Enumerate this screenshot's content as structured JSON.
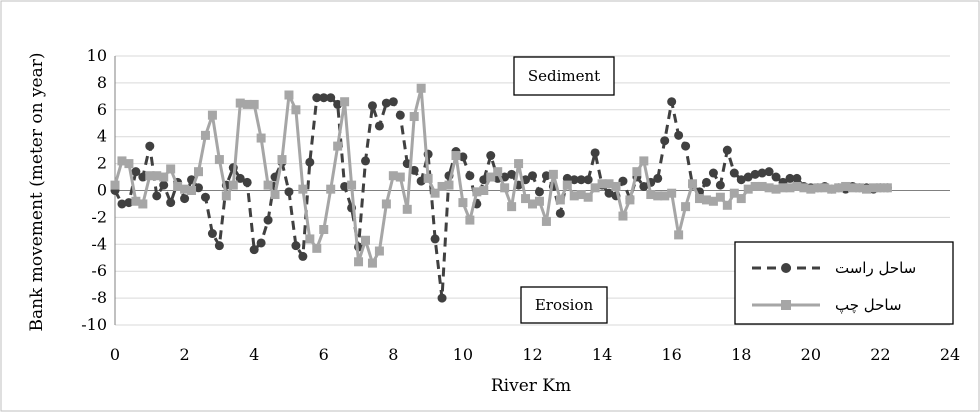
{
  "chart_data": {
    "type": "line",
    "xlabel": "River Km",
    "ylabel": "Bank movement (meter on year)",
    "xlim": [
      0,
      24
    ],
    "ylim": [
      -10,
      10
    ],
    "xticks": [
      "0",
      "2",
      "4",
      "6",
      "8",
      "10",
      "12",
      "14",
      "16",
      "18",
      "20",
      "22",
      "24"
    ],
    "yticks": [
      "10",
      "8",
      "6",
      "4",
      "2",
      "0",
      "-2",
      "-4",
      "-6",
      "-8",
      "-10"
    ],
    "grid": true,
    "legend_position": "bottom-right",
    "annotations": {
      "sediment": "Sediment",
      "erosion": "Erosion"
    },
    "series": [
      {
        "name": "ساحل راست",
        "color": "#404040",
        "marker": "circle",
        "line": "dashed",
        "x": [
          0,
          0.2,
          0.4,
          0.6,
          0.8,
          1.0,
          1.2,
          1.4,
          1.6,
          1.8,
          2.0,
          2.2,
          2.4,
          2.6,
          2.8,
          3.0,
          3.2,
          3.4,
          3.6,
          3.8,
          4.0,
          4.2,
          4.4,
          4.6,
          4.8,
          5.0,
          5.2,
          5.4,
          5.6,
          5.8,
          6.0,
          6.2,
          6.4,
          6.6,
          6.8,
          7.0,
          7.2,
          7.4,
          7.6,
          7.8,
          8.0,
          8.2,
          8.4,
          8.6,
          8.8,
          9.0,
          9.2,
          9.4,
          9.6,
          9.8,
          10.0,
          10.2,
          10.4,
          10.6,
          10.8,
          11.0,
          11.2,
          11.4,
          11.6,
          11.8,
          12.0,
          12.2,
          12.4,
          12.6,
          12.8,
          13.0,
          13.2,
          13.4,
          13.6,
          13.8,
          14.0,
          14.2,
          14.4,
          14.6,
          14.8,
          15.0,
          15.2,
          15.4,
          15.6,
          15.8,
          16.0,
          16.2,
          16.4,
          16.6,
          16.8,
          17.0,
          17.2,
          17.4,
          17.6,
          17.8,
          18.0,
          18.2,
          18.4,
          18.6,
          18.8,
          19.0,
          19.2,
          19.4,
          19.6,
          19.8,
          20.0,
          20.2,
          20.4,
          20.6,
          20.8,
          21.0,
          21.2,
          21.4,
          21.6,
          21.8,
          22.0,
          22.2
        ],
        "y": [
          0,
          -1,
          -0.9,
          1.4,
          1.0,
          3.3,
          -0.4,
          0.4,
          -0.9,
          0.6,
          -0.6,
          0.8,
          0.2,
          -0.5,
          -3.2,
          -4.1,
          0.4,
          1.7,
          0.9,
          0.6,
          -4.4,
          -3.9,
          -2.2,
          1.0,
          2.1,
          -0.1,
          -4.1,
          -4.9,
          2.1,
          6.9,
          6.9,
          6.9,
          6.4,
          0.3,
          -1.3,
          -4.2,
          2.2,
          6.3,
          4.8,
          6.5,
          6.6,
          5.6,
          2.0,
          1.5,
          0.7,
          2.7,
          -3.6,
          -8.0,
          1.1,
          2.9,
          2.5,
          1.1,
          -1.0,
          0.8,
          2.6,
          0.9,
          1.0,
          1.2,
          0.4,
          0.8,
          1.1,
          -0.1,
          1.1,
          0.3,
          -1.7,
          0.9,
          0.8,
          0.8,
          0.8,
          2.8,
          0.4,
          -0.2,
          -0.4,
          0.7,
          -0.6,
          1.0,
          0.3,
          0.6,
          0.9,
          3.7,
          6.6,
          4.1,
          3.3,
          0.4,
          -0.1,
          0.6,
          1.3,
          0.4,
          3.0,
          1.3,
          0.8,
          1.0,
          1.2,
          1.3,
          1.4,
          1.0,
          0.6,
          0.9,
          0.9,
          0.3,
          0.2,
          0.2,
          0.3,
          0.1,
          0.2,
          0.1,
          0.3,
          0.2,
          0.2,
          0.1,
          0.2,
          0.2
        ],
        "x_display_note": ""
      },
      {
        "name": "ساحل چپ",
        "color": "#a6a6a6",
        "marker": "square",
        "line": "solid",
        "x": [
          0,
          0.2,
          0.4,
          0.6,
          0.8,
          1.0,
          1.2,
          1.4,
          1.6,
          1.8,
          2.0,
          2.2,
          2.4,
          2.6,
          2.8,
          3.0,
          3.2,
          3.4,
          3.6,
          3.8,
          4.0,
          4.2,
          4.4,
          4.6,
          4.8,
          5.0,
          5.2,
          5.4,
          5.6,
          5.8,
          6.0,
          6.2,
          6.4,
          6.6,
          6.8,
          7.0,
          7.2,
          7.4,
          7.6,
          7.8,
          8.0,
          8.2,
          8.4,
          8.6,
          8.8,
          9.0,
          9.2,
          9.4,
          9.6,
          9.8,
          10.0,
          10.2,
          10.4,
          10.6,
          10.8,
          11.0,
          11.2,
          11.4,
          11.6,
          11.8,
          12.0,
          12.2,
          12.4,
          12.6,
          12.8,
          13.0,
          13.2,
          13.4,
          13.6,
          13.8,
          14.0,
          14.2,
          14.4,
          14.6,
          14.8,
          15.0,
          15.2,
          15.4,
          15.6,
          15.8,
          16.0,
          16.2,
          16.4,
          16.6,
          16.8,
          17.0,
          17.2,
          17.4,
          17.6,
          17.8,
          18.0,
          18.2,
          18.4,
          18.6,
          18.8,
          19.0,
          19.2,
          19.4,
          19.6,
          19.8,
          20.0,
          20.2,
          20.4,
          20.6,
          20.8,
          21.0,
          21.2,
          21.4,
          21.6,
          21.8,
          22.0,
          22.2
        ],
        "y": [
          0.4,
          2.2,
          2.0,
          -0.8,
          -1.0,
          1.1,
          1.1,
          1.0,
          1.6,
          0.3,
          0.1,
          0.0,
          1.4,
          4.1,
          5.6,
          2.3,
          -0.4,
          0.4,
          6.5,
          6.4,
          6.4,
          3.9,
          0.4,
          -0.3,
          2.3,
          7.1,
          6.0,
          0.1,
          -3.6,
          -4.3,
          -2.9,
          0.1,
          3.3,
          6.6,
          0.4,
          -5.3,
          -3.7,
          -5.4,
          -4.5,
          -1.0,
          1.1,
          1.0,
          -1.4,
          5.5,
          7.6,
          0.9,
          -0.2,
          0.3,
          0.4,
          2.6,
          -0.9,
          -2.2,
          -0.1,
          0.0,
          1.0,
          1.4,
          0.2,
          -1.2,
          2.0,
          -0.6,
          -1.0,
          -0.8,
          -2.3,
          1.2,
          -0.7,
          0.4,
          -0.4,
          -0.3,
          -0.5,
          0.2,
          0.5,
          0.5,
          0.3,
          -1.9,
          -0.7,
          1.4,
          2.2,
          -0.3,
          -0.4,
          -0.4,
          -0.2,
          -3.3,
          -1.2,
          0.5,
          -0.6,
          -0.7,
          -0.8,
          -0.5,
          -1.1,
          -0.2,
          -0.6,
          0.1,
          0.3,
          0.3,
          0.2,
          0.1,
          0.2,
          0.2,
          0.3,
          0.2,
          0.1,
          0.2,
          0.2,
          0.1,
          0.2,
          0.3,
          0.2,
          0.2,
          0.1,
          0.2,
          0.2,
          0.2
        ]
      }
    ]
  }
}
